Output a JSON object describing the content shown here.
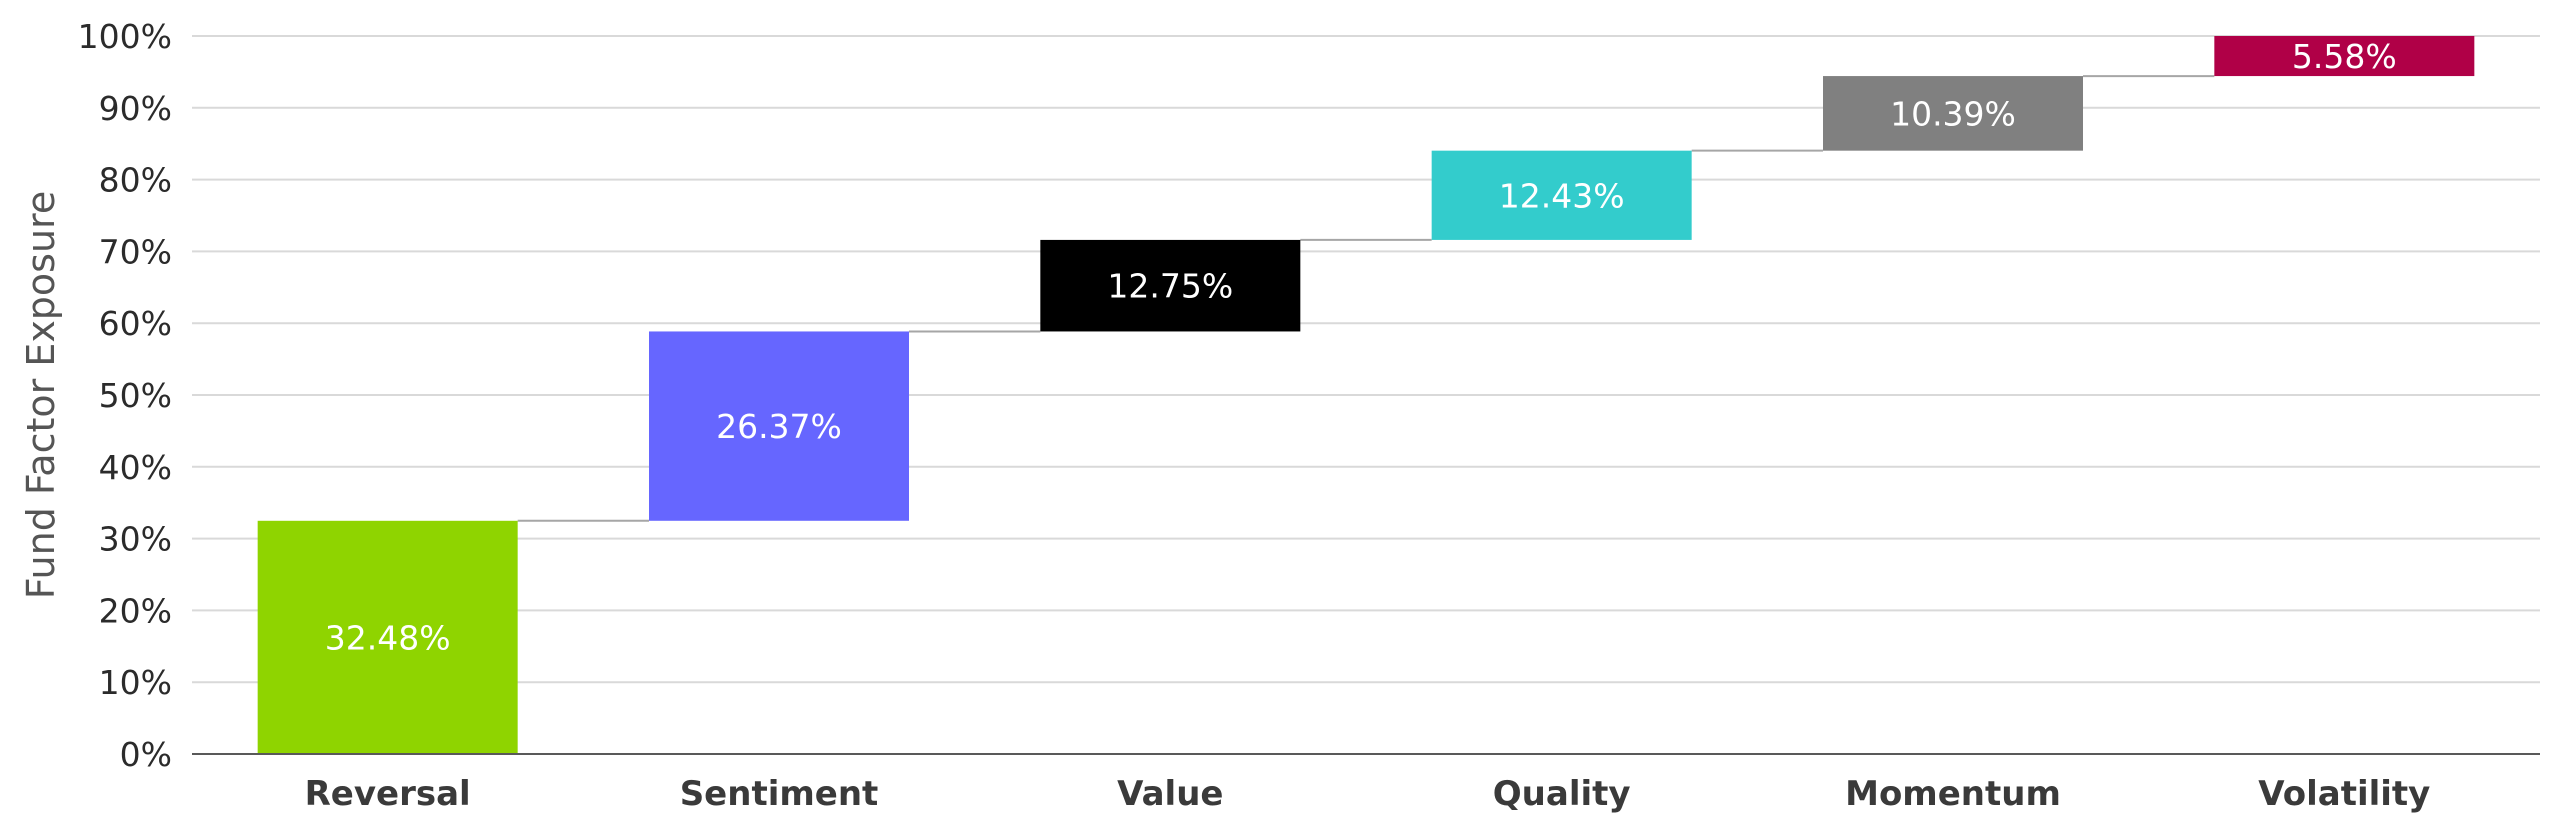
{
  "chart_data": {
    "type": "bar",
    "subtype": "waterfall",
    "title": "",
    "xlabel": "",
    "ylabel": "Fund Factor Exposure",
    "ylim": [
      0,
      100
    ],
    "yticks": [
      0,
      10,
      20,
      30,
      40,
      50,
      60,
      70,
      80,
      90,
      100
    ],
    "ytick_labels": [
      "0%",
      "10%",
      "20%",
      "30%",
      "40%",
      "50%",
      "60%",
      "70%",
      "80%",
      "90%",
      "100%"
    ],
    "grid": true,
    "legend": "none",
    "categories": [
      "Reversal",
      "Sentiment",
      "Value",
      "Quality",
      "Momentum",
      "Volatility"
    ],
    "values": [
      32.48,
      26.37,
      12.75,
      12.43,
      10.39,
      5.58
    ],
    "data_labels": [
      "32.48%",
      "26.37%",
      "12.75%",
      "12.43%",
      "10.39%",
      "5.58%"
    ],
    "colors": [
      "#8fd400",
      "#6666ff",
      "#000000",
      "#33cccc",
      "#808080",
      "#b00047"
    ]
  }
}
